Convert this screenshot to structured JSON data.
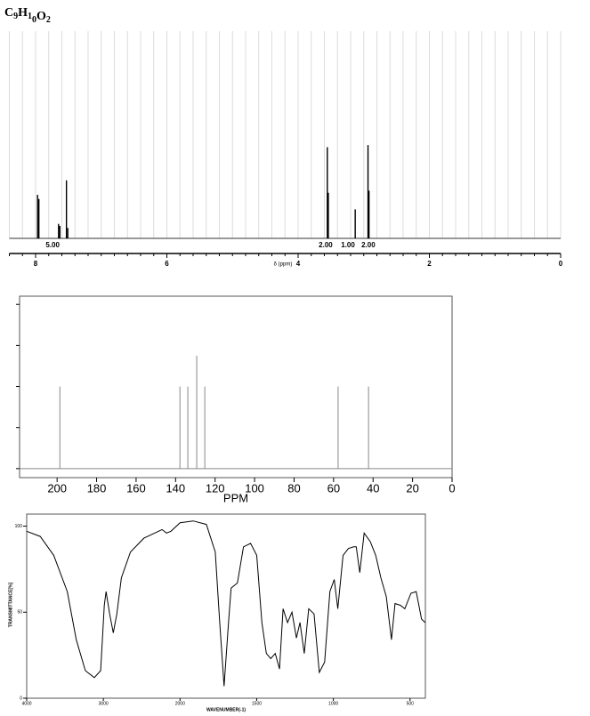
{
  "chart_data": [
    {
      "type": "stem",
      "title": "C9H10O2",
      "x_label": "δ (ppm)",
      "x": [
        7.97,
        7.95,
        7.65,
        7.63,
        7.53,
        7.51,
        3.555,
        3.54,
        3.13,
        2.935,
        2.92
      ],
      "values": [
        21,
        19,
        7,
        6,
        28,
        5,
        44,
        22,
        14,
        45,
        23
      ],
      "color": "#000000",
      "xlim": [
        8.4,
        0
      ],
      "ylim": [
        0,
        100
      ],
      "xticks": [
        8,
        6,
        4,
        2,
        0
      ],
      "xticks_minor": [
        8.4,
        8.2,
        7.8,
        7.6,
        7.4,
        7.2,
        7,
        6.8,
        6.6,
        6.4,
        6.2,
        5.8,
        5.6,
        5.4,
        5.2,
        5,
        4.8,
        4.6,
        4.4,
        4.2,
        3.8,
        3.6,
        3.4,
        3.2,
        3,
        2.8,
        2.6,
        2.4,
        2.2,
        1.8,
        1.6,
        1.4,
        1.2,
        1,
        0.8,
        0.6,
        0.4,
        0.2
      ],
      "grid": true,
      "integral_x": [
        7.74,
        3.58,
        3.24,
        2.93
      ],
      "integrals": [
        5,
        2,
        1,
        2
      ],
      "integral_labels": [
        "5.00",
        "2.00",
        "1.00",
        "2.00"
      ]
    },
    {
      "type": "stem",
      "x_label": "PPM",
      "x": [
        198.6,
        137.8,
        133.8,
        129.3,
        125.2,
        57.7,
        42.3
      ],
      "values": [
        2,
        2,
        2,
        2.75,
        2,
        2,
        2
      ],
      "color": "#888888",
      "xlim": [
        219,
        0
      ],
      "ylim": [
        -0.22,
        4.2
      ],
      "xticks": [
        200,
        180,
        160,
        140,
        120,
        100,
        80,
        60,
        40,
        20,
        0
      ],
      "yticks": [
        0,
        1,
        2,
        3,
        4
      ],
      "show_ytick_labels": false,
      "grid": false
    },
    {
      "type": "line",
      "x_label": "WAVENUMBER(-1)",
      "y_label": "TRANSMITTANCE[%]",
      "x": [
        4000,
        3824,
        3647,
        3471,
        3353,
        3235,
        3118,
        3035,
        2988,
        2965,
        2918,
        2871,
        2824,
        2765,
        2647,
        2471,
        2235,
        2176,
        2118,
        2000,
        1914,
        1828,
        1770,
        1741,
        1713,
        1684,
        1667,
        1626,
        1586,
        1540,
        1500,
        1466,
        1437,
        1408,
        1379,
        1351,
        1328,
        1299,
        1270,
        1241,
        1218,
        1190,
        1161,
        1126,
        1092,
        1057,
        1023,
        994,
        971,
        937,
        902,
        868,
        851,
        828,
        799,
        759,
        724,
        690,
        655,
        621,
        598,
        563,
        534,
        494,
        460,
        425,
        402
      ],
      "values": [
        97,
        94,
        83,
        62,
        34,
        16,
        12,
        16,
        54,
        62,
        49,
        38,
        49,
        70,
        85,
        93,
        98,
        96,
        97,
        102,
        103,
        101,
        85,
        44,
        7,
        44,
        64,
        67,
        88,
        90,
        83,
        44,
        26,
        23,
        26,
        17,
        52,
        44,
        50,
        35,
        44,
        26,
        52,
        49,
        15,
        21,
        62,
        69,
        52,
        83,
        87,
        88,
        88,
        73,
        96,
        91,
        83,
        70,
        59,
        34,
        55,
        54,
        52,
        61,
        62,
        46,
        44
      ],
      "color": "#000000",
      "xlim": [
        4000,
        400
      ],
      "ylim": [
        0,
        107
      ],
      "x_break": 2000,
      "x_compression": 2,
      "xticks": [
        4000,
        3000,
        2000,
        1500,
        1000,
        500
      ],
      "yticks": [
        0,
        50,
        100
      ],
      "grid": false
    }
  ]
}
